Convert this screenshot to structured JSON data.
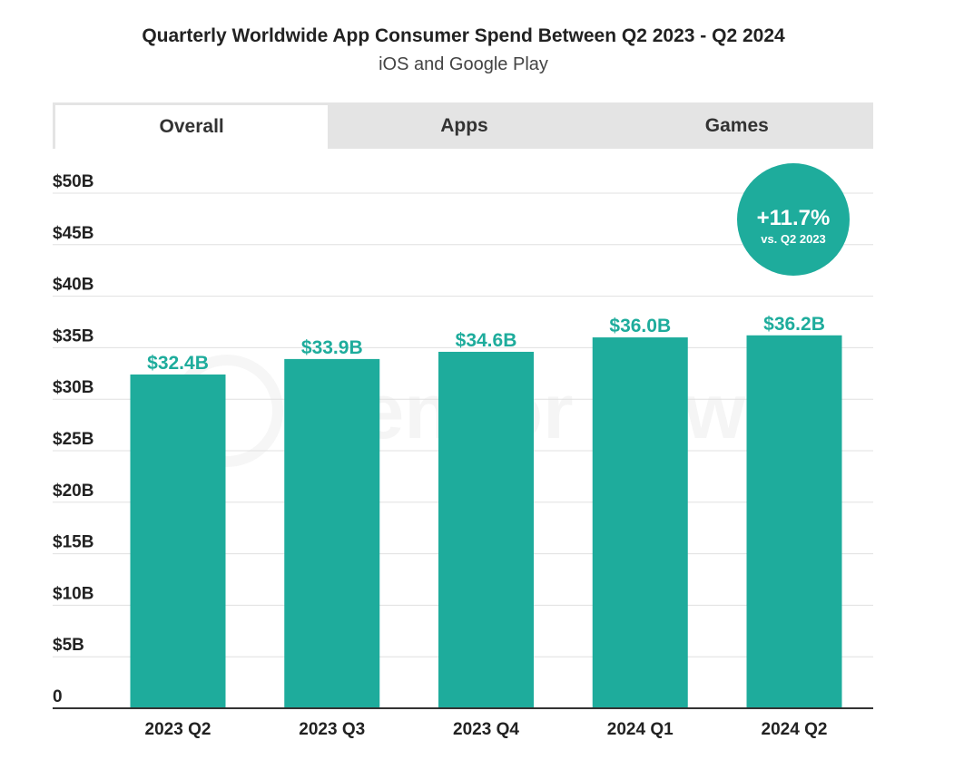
{
  "header": {
    "title": "Quarterly Worldwide App Consumer Spend Between Q2 2023 - Q2 2024",
    "subtitle": "iOS and Google Play"
  },
  "tabs": [
    {
      "label": "Overall",
      "active": true
    },
    {
      "label": "Apps",
      "active": false
    },
    {
      "label": "Games",
      "active": false
    }
  ],
  "badge": {
    "value": "+11.7%",
    "caption": "vs. Q2 2023"
  },
  "watermark": "Sensor Tower",
  "colors": {
    "bar": "#1eac9c",
    "label": "#1eac9c",
    "grid": "#e0e0e0",
    "axis": "#333333"
  },
  "chart_data": {
    "type": "bar",
    "categories": [
      "2023 Q2",
      "2023 Q3",
      "2023 Q4",
      "2024 Q1",
      "2024 Q2"
    ],
    "values": [
      32.4,
      33.9,
      34.6,
      36.0,
      36.2
    ],
    "data_labels": [
      "$32.4B",
      "$33.9B",
      "$34.6B",
      "$36.0B",
      "$36.2B"
    ],
    "yticks": [
      0,
      5,
      10,
      15,
      20,
      25,
      30,
      35,
      40,
      45,
      50
    ],
    "ytick_labels": [
      "0",
      "$5B",
      "$10B",
      "$15B",
      "$20B",
      "$25B",
      "$30B",
      "$35B",
      "$40B",
      "$45B",
      "$50B"
    ],
    "ylim": [
      0,
      50
    ],
    "grid": true,
    "xlabel": "",
    "ylabel": ""
  }
}
